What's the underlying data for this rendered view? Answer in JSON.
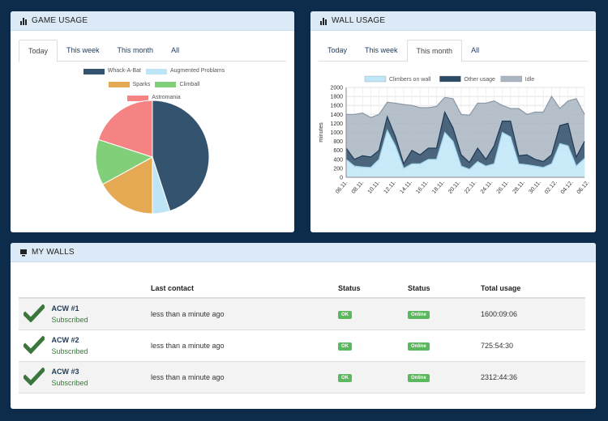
{
  "game_usage": {
    "title": "GAME USAGE",
    "tabs": [
      "Today",
      "This week",
      "This month",
      "All"
    ],
    "active_tab": 0,
    "chart_data": {
      "type": "pie",
      "labels": [
        "Whack-A-Bat",
        "Augmented Problams",
        "Sparks",
        "Climball",
        "Astromania"
      ],
      "values": [
        45,
        5,
        17,
        13,
        20
      ],
      "colors": [
        "#34536e",
        "#bde5f5",
        "#e5a853",
        "#82cf7a",
        "#f58383"
      ]
    }
  },
  "wall_usage": {
    "title": "WALL USAGE",
    "tabs": [
      "Today",
      "This week",
      "This month",
      "All"
    ],
    "active_tab": 2,
    "chart_data": {
      "type": "area",
      "stacked": true,
      "ylabel": "minutes",
      "ylim": [
        0,
        2000
      ],
      "yticks": [
        0,
        200,
        400,
        600,
        800,
        1000,
        1200,
        1400,
        1600,
        1800,
        2000
      ],
      "x": [
        "07.11.",
        "08.11.",
        "09.11.",
        "10.11.",
        "11.11.",
        "12.11.",
        "13.11.",
        "14.11.",
        "15.11.",
        "16.11.",
        "17.11.",
        "18.11.",
        "19.11.",
        "20.11.",
        "21.11.",
        "22.11.",
        "23.11.",
        "24.11.",
        "25.11.",
        "26.11.",
        "27.11.",
        "28.11.",
        "29.11.",
        "30.11.",
        "01.12.",
        "02.12.",
        "03.12.",
        "04.12.",
        "05.12.",
        "06.12."
      ],
      "tick_labels": [
        "06.11.",
        "08.11.",
        "10.11.",
        "12.11.",
        "14.11.",
        "16.11.",
        "18.11.",
        "20.11.",
        "22.11.",
        "24.11.",
        "26.11.",
        "28.11.",
        "30.11.",
        "02.12.",
        "04.12.",
        "06.12."
      ],
      "grid": true,
      "legend": "top",
      "series": [
        {
          "name": "Climbers on wall",
          "color": "#bfe6f7",
          "values": [
            400,
            250,
            230,
            220,
            400,
            1050,
            700,
            200,
            300,
            300,
            400,
            400,
            1000,
            800,
            250,
            180,
            350,
            250,
            300,
            1000,
            900,
            300,
            280,
            250,
            220,
            300,
            750,
            700,
            250,
            420
          ]
        },
        {
          "name": "Other usage",
          "color": "#2c4a66",
          "values": [
            250,
            150,
            250,
            230,
            200,
            300,
            200,
            100,
            300,
            200,
            250,
            250,
            450,
            300,
            250,
            150,
            300,
            150,
            400,
            250,
            350,
            180,
            220,
            150,
            130,
            200,
            400,
            500,
            200,
            380
          ]
        },
        {
          "name": "Idle",
          "color": "#a9b5c1",
          "values": [
            750,
            1000,
            950,
            880,
            800,
            320,
            750,
            1320,
            1000,
            1050,
            900,
            930,
            330,
            650,
            900,
            1050,
            1000,
            1250,
            1000,
            350,
            280,
            1050,
            900,
            1050,
            1100,
            1300,
            380,
            500,
            1300,
            600
          ]
        }
      ]
    }
  },
  "my_walls": {
    "title": "MY WALLS",
    "columns": [
      "",
      "Last contact",
      "Status",
      "Status",
      "Total usage"
    ],
    "rows": [
      {
        "name": "ACW #1",
        "sub": "Subscribed",
        "last_contact": "less than a minute ago",
        "status1": "OK",
        "status2": "Online",
        "usage": "1600:09:06"
      },
      {
        "name": "ACW #2",
        "sub": "Subscribed",
        "last_contact": "less than a minute ago",
        "status1": "OK",
        "status2": "Online",
        "usage": "725:54:30"
      },
      {
        "name": "ACW #3",
        "sub": "Subscribed",
        "last_contact": "less than a minute ago",
        "status1": "OK",
        "status2": "Online",
        "usage": "2312:44:36"
      }
    ]
  }
}
